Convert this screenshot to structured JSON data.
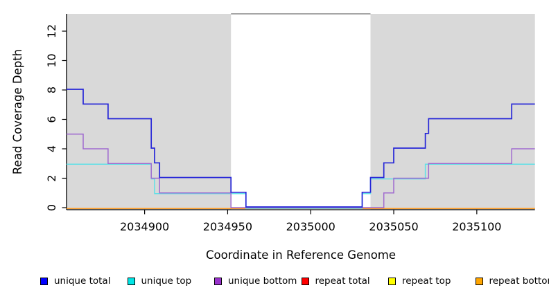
{
  "chart_data": {
    "type": "line",
    "subtype": "step-coverage",
    "title": "",
    "xlabel": "Coordinate in Reference Genome",
    "ylabel": "Read Coverage Depth",
    "x_ticks": [
      2034900,
      2034950,
      2035000,
      2035050,
      2035100
    ],
    "x_tick_labels": [
      "2034900",
      "2034950",
      "2035000",
      "2035050",
      "2035100"
    ],
    "y_ticks": [
      0,
      2,
      4,
      6,
      8,
      10,
      12
    ],
    "y_tick_labels": [
      "0",
      "2",
      "4",
      "6",
      "8",
      "10",
      "12"
    ],
    "x_range": [
      2034853,
      2035135
    ],
    "y_range": [
      0,
      13.2
    ],
    "grid": false,
    "legend_position": "bottom",
    "shaded_regions": [
      {
        "name": "left-aligned-region",
        "x0": 2034853,
        "x1": 2034952,
        "color": "#d9d9d9"
      },
      {
        "name": "right-aligned-region",
        "x0": 2035036,
        "x1": 2035135,
        "color": "#d9d9d9"
      }
    ],
    "gap_region": {
      "x0": 2034952,
      "x1": 2035036,
      "color": "#ffffff"
    },
    "series": [
      {
        "name": "repeat total",
        "line_color": "#e03030",
        "legend_color": "#ff0000",
        "offset": 1.2,
        "points": [
          [
            2034853,
            0
          ],
          [
            2035135,
            0
          ]
        ]
      },
      {
        "name": "repeat top",
        "line_color": "#f5f500",
        "legend_color": "#ffff00",
        "offset": 1.2,
        "points": [
          [
            2034853,
            0
          ],
          [
            2035135,
            0
          ]
        ]
      },
      {
        "name": "repeat bottom",
        "line_color": "#ff9d26",
        "legend_color": "#ffa500",
        "offset": 1.2,
        "points": [
          [
            2034853,
            0
          ],
          [
            2035135,
            0
          ]
        ]
      },
      {
        "name": "unique top",
        "line_color": "#5fe0e6",
        "legend_color": "#00e5e5",
        "offset": 1.0,
        "points": [
          [
            2034853,
            3
          ],
          [
            2034904,
            2
          ],
          [
            2034906,
            1
          ],
          [
            2034961,
            0
          ],
          [
            2035031,
            1
          ],
          [
            2035036,
            2
          ],
          [
            2035069,
            3
          ],
          [
            2035135,
            3
          ]
        ]
      },
      {
        "name": "unique bottom",
        "line_color": "#a06ad0",
        "legend_color": "#9932cc",
        "offset": 0,
        "points": [
          [
            2034853,
            5
          ],
          [
            2034863,
            4
          ],
          [
            2034878,
            3
          ],
          [
            2034904,
            2
          ],
          [
            2034909,
            1
          ],
          [
            2034952,
            0
          ],
          [
            2035044,
            1
          ],
          [
            2035050,
            2
          ],
          [
            2035071,
            3
          ],
          [
            2035121,
            4
          ],
          [
            2035135,
            4
          ]
        ]
      },
      {
        "name": "unique total",
        "line_color": "#2626d8",
        "legend_color": "#0000ff",
        "offset": -1.0,
        "points": [
          [
            2034853,
            8
          ],
          [
            2034863,
            7
          ],
          [
            2034878,
            6
          ],
          [
            2034904,
            4
          ],
          [
            2034906,
            3
          ],
          [
            2034909,
            2
          ],
          [
            2034952,
            1
          ],
          [
            2034961,
            0
          ],
          [
            2035031,
            1
          ],
          [
            2035036,
            2
          ],
          [
            2035044,
            3
          ],
          [
            2035050,
            4
          ],
          [
            2035069,
            5
          ],
          [
            2035071,
            6
          ],
          [
            2035121,
            7
          ],
          [
            2035135,
            7
          ]
        ]
      }
    ]
  },
  "legend": {
    "items": [
      {
        "label": "unique total",
        "color": "#0000ff"
      },
      {
        "label": "unique top",
        "color": "#00e5e5"
      },
      {
        "label": "unique bottom",
        "color": "#9932cc"
      },
      {
        "label": "repeat total",
        "color": "#ff0000"
      },
      {
        "label": "repeat top",
        "color": "#ffff00"
      },
      {
        "label": "repeat bottom",
        "color": "#ffa500"
      }
    ]
  },
  "colors": {
    "background": "#ffffff",
    "shading": "#d9d9d9",
    "axis": "#000000",
    "gap_top_border": "#707070"
  }
}
